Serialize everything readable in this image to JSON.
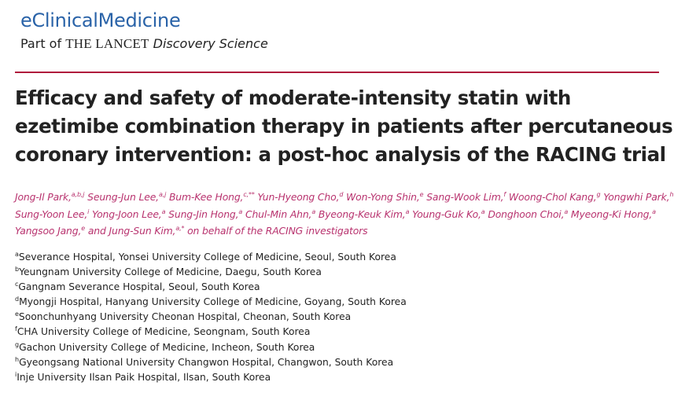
{
  "journal": {
    "name": "eClinicalMedicine",
    "part_of": "Part of ",
    "lancet": "THE LANCET",
    "discovery": "Discovery Science"
  },
  "article": {
    "title_lines": [
      "Efficacy and safety of moderate-intensity statin with",
      "ezetimibe combination therapy in patients after percutaneous",
      "coronary intervention: a post-hoc analysis of the RACING trial"
    ]
  },
  "authors": [
    [
      {
        "name": "Jong-Il Park,",
        "sup": "a,b,j"
      },
      {
        "name": " Seung-Jun Lee,",
        "sup": "a,j"
      },
      {
        "name": " Bum-Kee Hong,",
        "sup": "c,**"
      },
      {
        "name": " Yun-Hyeong Cho,",
        "sup": "d"
      },
      {
        "name": " Won-Yong Shin,",
        "sup": "e"
      },
      {
        "name": " Sang-Wook Lim,",
        "sup": "f"
      },
      {
        "name": " Woong-Chol Kang,",
        "sup": "g"
      },
      {
        "name": " Yongwhi Park,",
        "sup": "h"
      }
    ],
    [
      {
        "name": "Sung-Yoon Lee,",
        "sup": "i"
      },
      {
        "name": " Yong-Joon Lee,",
        "sup": "a"
      },
      {
        "name": " Sung-Jin Hong,",
        "sup": "a"
      },
      {
        "name": " Chul-Min Ahn,",
        "sup": "a"
      },
      {
        "name": " Byeong-Keuk Kim,",
        "sup": "a"
      },
      {
        "name": " Young-Guk Ko,",
        "sup": "a"
      },
      {
        "name": " Donghoon Choi,",
        "sup": "a"
      },
      {
        "name": " Myeong-Ki Hong,",
        "sup": "a"
      }
    ],
    [
      {
        "name": "Yangsoo Jang,",
        "sup": "e"
      },
      {
        "name": " and Jung-Sun Kim,",
        "sup": "a,*"
      },
      {
        "name": " on behalf of the RACING investigators",
        "sup": ""
      }
    ]
  ],
  "affiliations": [
    {
      "sup": "a",
      "text": "Severance Hospital, Yonsei University College of Medicine, Seoul, South Korea"
    },
    {
      "sup": "b",
      "text": "Yeungnam University College of Medicine, Daegu, South Korea"
    },
    {
      "sup": "c",
      "text": "Gangnam Severance Hospital, Seoul, South Korea"
    },
    {
      "sup": "d",
      "text": "Myongji Hospital, Hanyang University College of Medicine, Goyang, South Korea"
    },
    {
      "sup": "e",
      "text": "Soonchunhyang University Cheonan Hospital, Cheonan, South Korea"
    },
    {
      "sup": "f",
      "text": "CHA University College of Medicine, Seongnam, South Korea"
    },
    {
      "sup": "g",
      "text": "Gachon University College of Medicine, Incheon, South Korea"
    },
    {
      "sup": "h",
      "text": "Gyeongsang National University Changwon Hospital, Changwon, South Korea"
    },
    {
      "sup": "i",
      "text": "Inje University Ilsan Paik Hospital, Ilsan, South Korea"
    }
  ]
}
